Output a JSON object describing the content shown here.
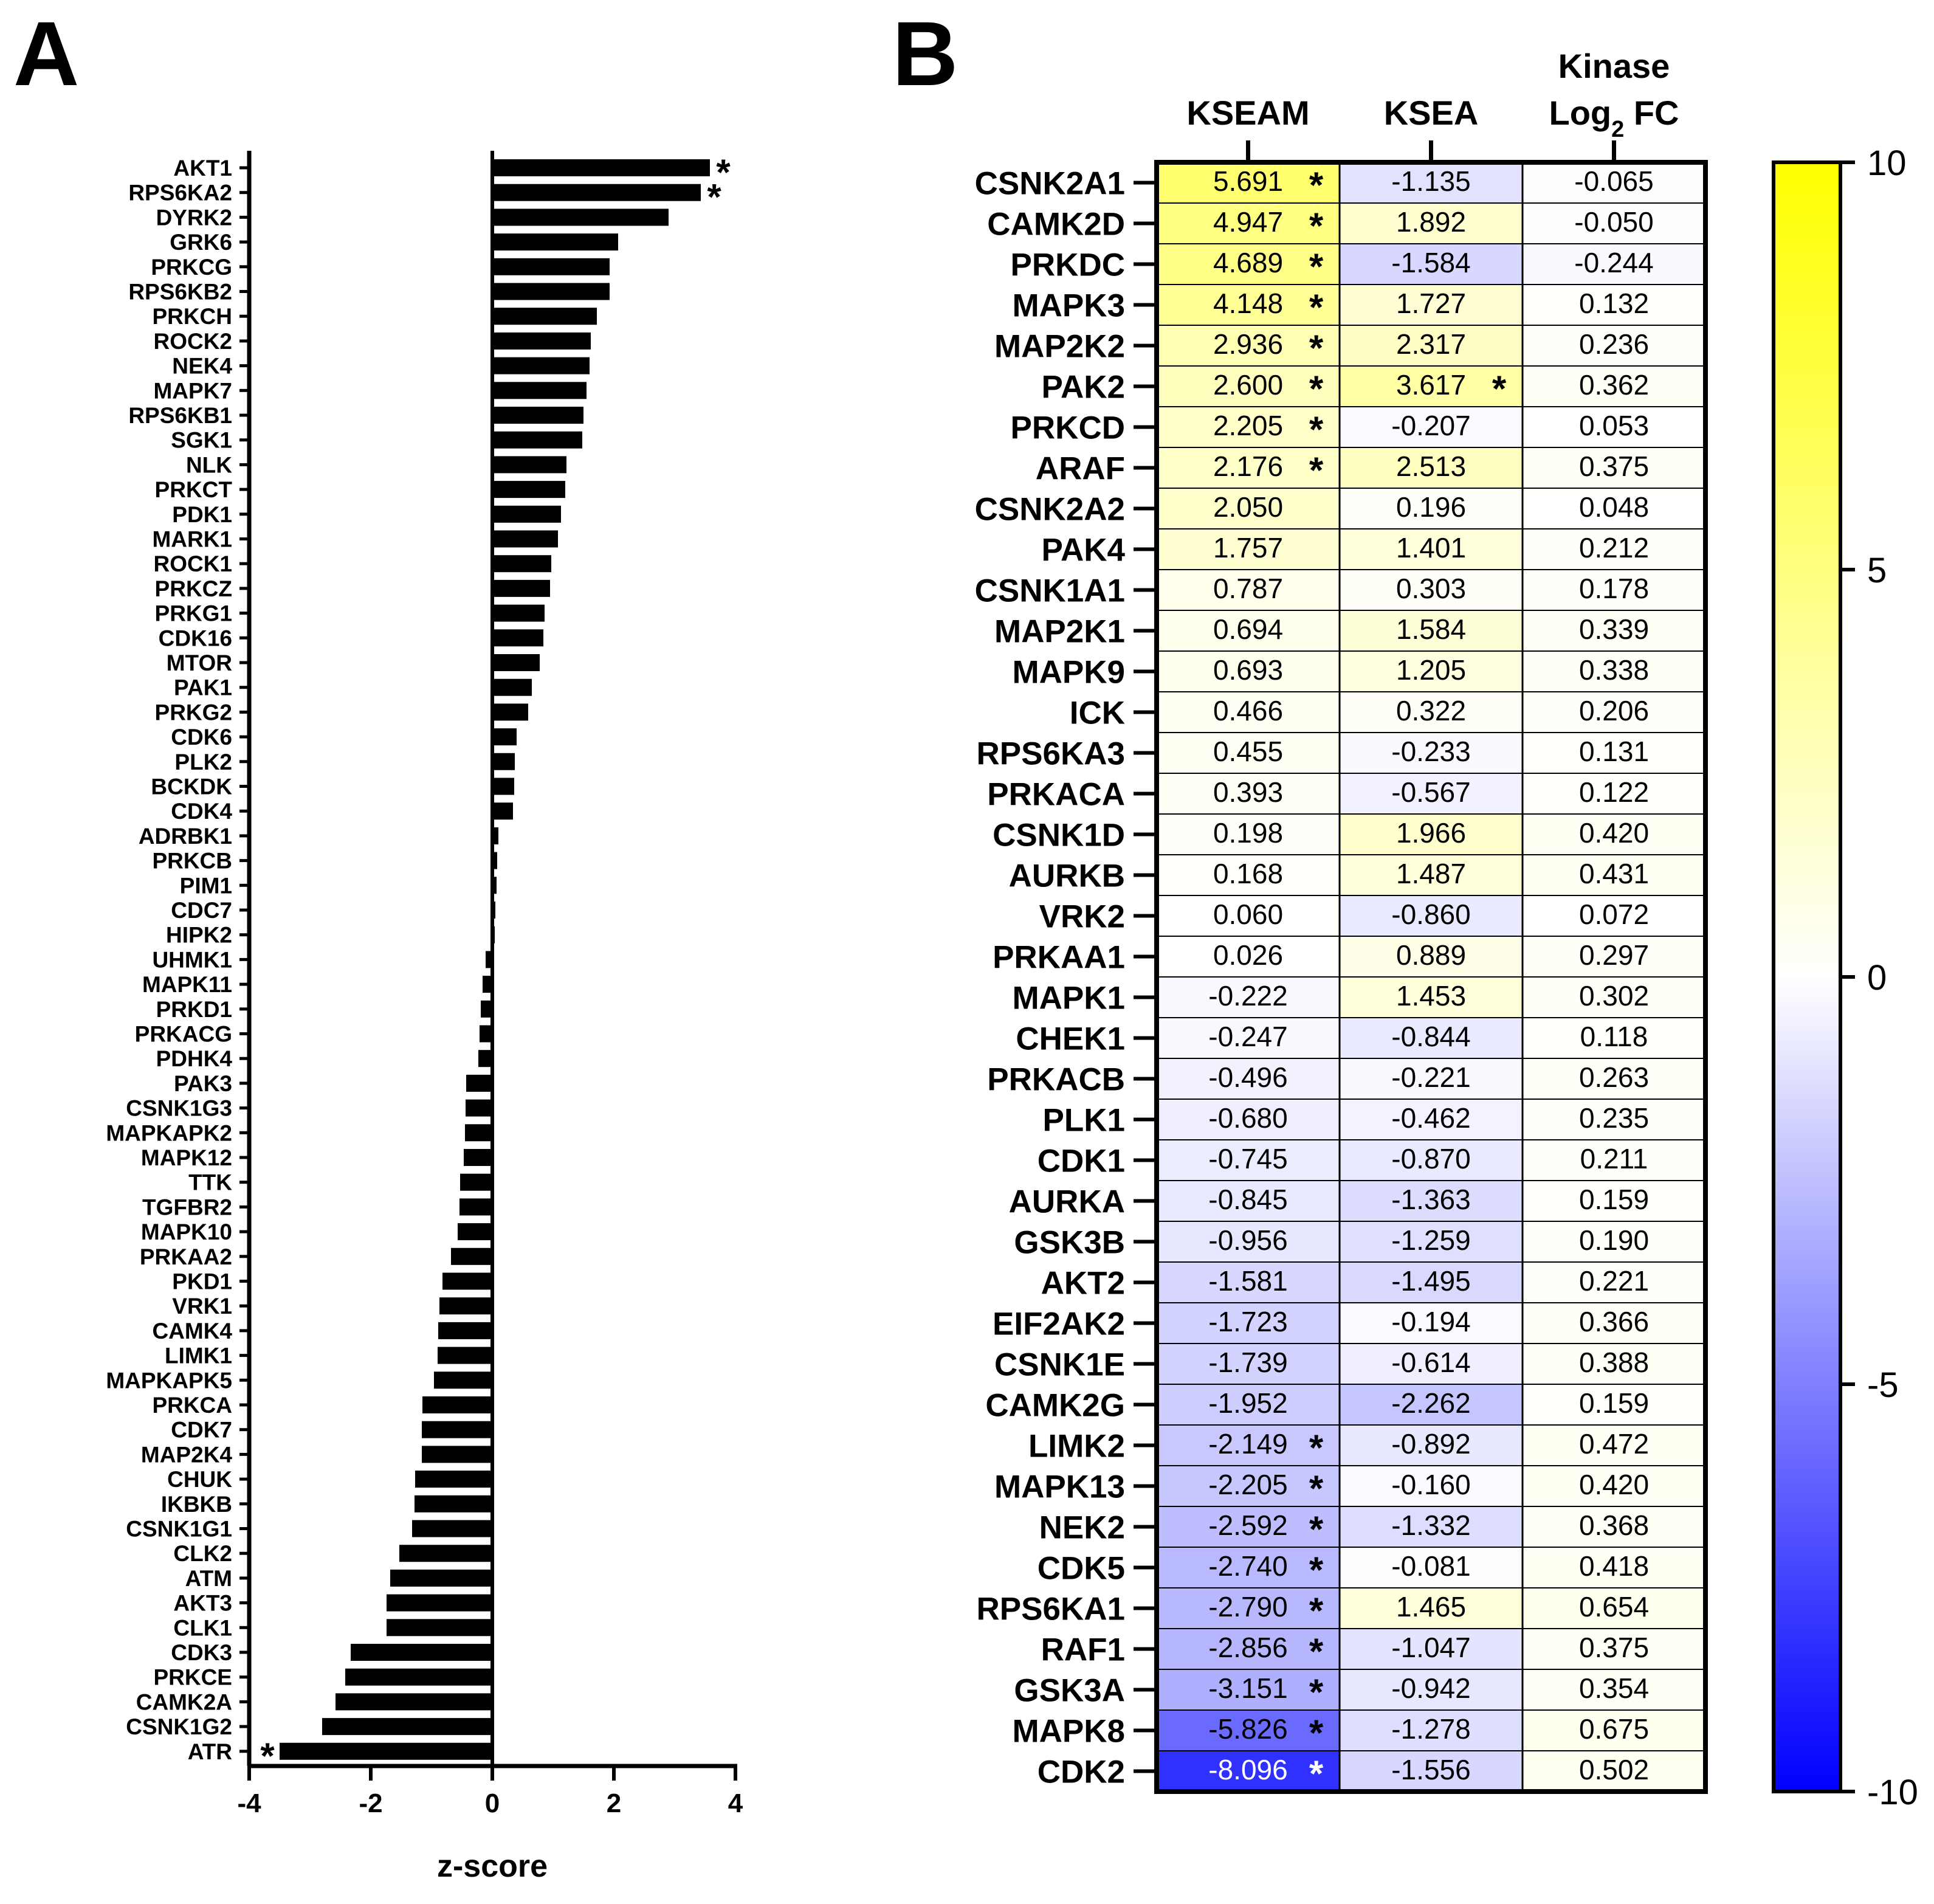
{
  "panels": {
    "a": "A",
    "b": "B"
  },
  "chart_data": [
    {
      "type": "bar",
      "orientation": "horizontal",
      "panel": "A",
      "title": "",
      "xlabel": "z-score",
      "ylabel": "",
      "xlim": [
        -4,
        4
      ],
      "xticks": [
        "-4",
        "-2",
        "0",
        "2",
        "4"
      ],
      "star_marker": "*",
      "categories": [
        "AKT1",
        "RPS6KA2",
        "DYRK2",
        "GRK6",
        "PRKCG",
        "RPS6KB2",
        "PRKCH",
        "ROCK2",
        "NEK4",
        "MAPK7",
        "RPS6KB1",
        "SGK1",
        "NLK",
        "PRKCT",
        "PDK1",
        "MARK1",
        "ROCK1",
        "PRKCZ",
        "PRKG1",
        "CDK16",
        "MTOR",
        "PAK1",
        "PRKG2",
        "CDK6",
        "PLK2",
        "BCKDK",
        "CDK4",
        "ADRBK1",
        "PRKCB",
        "PIM1",
        "CDC7",
        "HIPK2",
        "UHMK1",
        "MAPK11",
        "PRKD1",
        "PRKACG",
        "PDHK4",
        "PAK3",
        "CSNK1G3",
        "MAPKAPK2",
        "MAPK12",
        "TTK",
        "TGFBR2",
        "MAPK10",
        "PRKAA2",
        "PKD1",
        "VRK1",
        "CAMK4",
        "LIMK1",
        "MAPKAPK5",
        "PRKCA",
        "CDK7",
        "MAP2K4",
        "CHUK",
        "IKBKB",
        "CSNK1G1",
        "CLK2",
        "ATM",
        "AKT3",
        "CLK1",
        "CDK3",
        "PRKCE",
        "CAMK2A",
        "CSNK1G2",
        "ATR"
      ],
      "values": [
        3.58,
        3.43,
        2.9,
        2.07,
        1.93,
        1.93,
        1.72,
        1.62,
        1.6,
        1.55,
        1.5,
        1.48,
        1.22,
        1.2,
        1.13,
        1.08,
        0.97,
        0.95,
        0.86,
        0.84,
        0.78,
        0.65,
        0.59,
        0.4,
        0.37,
        0.36,
        0.34,
        0.1,
        0.08,
        0.07,
        0.05,
        0.04,
        -0.11,
        -0.16,
        -0.19,
        -0.21,
        -0.23,
        -0.43,
        -0.44,
        -0.45,
        -0.47,
        -0.53,
        -0.54,
        -0.57,
        -0.68,
        -0.82,
        -0.87,
        -0.89,
        -0.9,
        -0.96,
        -1.15,
        -1.16,
        -1.16,
        -1.27,
        -1.28,
        -1.32,
        -1.53,
        -1.68,
        -1.74,
        -1.74,
        -2.33,
        -2.42,
        -2.58,
        -2.8,
        -3.5
      ],
      "significant": [
        "AKT1",
        "RPS6KA2",
        "ATR"
      ]
    },
    {
      "type": "heatmap",
      "panel": "B",
      "title": "",
      "columns": [
        "KSEAM",
        "KSEA",
        "Kinase Log2 FC"
      ],
      "column_headers": {
        "kseam": "KSEAM",
        "ksea": "KSEA",
        "fc_line1": "Kinase",
        "fc_log": "Log",
        "fc_sub": "2",
        "fc_rest": " FC"
      },
      "colorbar": {
        "min": -10,
        "max": 10,
        "ticks": [
          "10",
          "5",
          "0",
          "-5",
          "-10"
        ],
        "colors": {
          "low": "#0000ff",
          "mid": "#ffffff",
          "high": "#ffff00"
        }
      },
      "star_marker": "*",
      "rows": [
        {
          "kinase": "CSNK2A1",
          "kseam": "5.691",
          "kseam_sig": true,
          "ksea": "-1.135",
          "ksea_sig": false,
          "fc": "-0.065"
        },
        {
          "kinase": "CAMK2D",
          "kseam": "4.947",
          "kseam_sig": true,
          "ksea": "1.892",
          "ksea_sig": false,
          "fc": "-0.050"
        },
        {
          "kinase": "PRKDC",
          "kseam": "4.689",
          "kseam_sig": true,
          "ksea": "-1.584",
          "ksea_sig": false,
          "fc": "-0.244"
        },
        {
          "kinase": "MAPK3",
          "kseam": "4.148",
          "kseam_sig": true,
          "ksea": "1.727",
          "ksea_sig": false,
          "fc": "0.132"
        },
        {
          "kinase": "MAP2K2",
          "kseam": "2.936",
          "kseam_sig": true,
          "ksea": "2.317",
          "ksea_sig": false,
          "fc": "0.236"
        },
        {
          "kinase": "PAK2",
          "kseam": "2.600",
          "kseam_sig": true,
          "ksea": "3.617",
          "ksea_sig": true,
          "fc": "0.362"
        },
        {
          "kinase": "PRKCD",
          "kseam": "2.205",
          "kseam_sig": true,
          "ksea": "-0.207",
          "ksea_sig": false,
          "fc": "0.053"
        },
        {
          "kinase": "ARAF",
          "kseam": "2.176",
          "kseam_sig": true,
          "ksea": "2.513",
          "ksea_sig": false,
          "fc": "0.375"
        },
        {
          "kinase": "CSNK2A2",
          "kseam": "2.050",
          "kseam_sig": false,
          "ksea": "0.196",
          "ksea_sig": false,
          "fc": "0.048"
        },
        {
          "kinase": "PAK4",
          "kseam": "1.757",
          "kseam_sig": false,
          "ksea": "1.401",
          "ksea_sig": false,
          "fc": "0.212"
        },
        {
          "kinase": "CSNK1A1",
          "kseam": "0.787",
          "kseam_sig": false,
          "ksea": "0.303",
          "ksea_sig": false,
          "fc": "0.178"
        },
        {
          "kinase": "MAP2K1",
          "kseam": "0.694",
          "kseam_sig": false,
          "ksea": "1.584",
          "ksea_sig": false,
          "fc": "0.339"
        },
        {
          "kinase": "MAPK9",
          "kseam": "0.693",
          "kseam_sig": false,
          "ksea": "1.205",
          "ksea_sig": false,
          "fc": "0.338"
        },
        {
          "kinase": "ICK",
          "kseam": "0.466",
          "kseam_sig": false,
          "ksea": "0.322",
          "ksea_sig": false,
          "fc": "0.206"
        },
        {
          "kinase": "RPS6KA3",
          "kseam": "0.455",
          "kseam_sig": false,
          "ksea": "-0.233",
          "ksea_sig": false,
          "fc": "0.131"
        },
        {
          "kinase": "PRKACA",
          "kseam": "0.393",
          "kseam_sig": false,
          "ksea": "-0.567",
          "ksea_sig": false,
          "fc": "0.122"
        },
        {
          "kinase": "CSNK1D",
          "kseam": "0.198",
          "kseam_sig": false,
          "ksea": "1.966",
          "ksea_sig": false,
          "fc": "0.420"
        },
        {
          "kinase": "AURKB",
          "kseam": "0.168",
          "kseam_sig": false,
          "ksea": "1.487",
          "ksea_sig": false,
          "fc": "0.431"
        },
        {
          "kinase": "VRK2",
          "kseam": "0.060",
          "kseam_sig": false,
          "ksea": "-0.860",
          "ksea_sig": false,
          "fc": "0.072"
        },
        {
          "kinase": "PRKAA1",
          "kseam": "0.026",
          "kseam_sig": false,
          "ksea": "0.889",
          "ksea_sig": false,
          "fc": "0.297"
        },
        {
          "kinase": "MAPK1",
          "kseam": "-0.222",
          "kseam_sig": false,
          "ksea": "1.453",
          "ksea_sig": false,
          "fc": "0.302"
        },
        {
          "kinase": "CHEK1",
          "kseam": "-0.247",
          "kseam_sig": false,
          "ksea": "-0.844",
          "ksea_sig": false,
          "fc": "0.118"
        },
        {
          "kinase": "PRKACB",
          "kseam": "-0.496",
          "kseam_sig": false,
          "ksea": "-0.221",
          "ksea_sig": false,
          "fc": "0.263"
        },
        {
          "kinase": "PLK1",
          "kseam": "-0.680",
          "kseam_sig": false,
          "ksea": "-0.462",
          "ksea_sig": false,
          "fc": "0.235"
        },
        {
          "kinase": "CDK1",
          "kseam": "-0.745",
          "kseam_sig": false,
          "ksea": "-0.870",
          "ksea_sig": false,
          "fc": "0.211"
        },
        {
          "kinase": "AURKA",
          "kseam": "-0.845",
          "kseam_sig": false,
          "ksea": "-1.363",
          "ksea_sig": false,
          "fc": "0.159"
        },
        {
          "kinase": "GSK3B",
          "kseam": "-0.956",
          "kseam_sig": false,
          "ksea": "-1.259",
          "ksea_sig": false,
          "fc": "0.190"
        },
        {
          "kinase": "AKT2",
          "kseam": "-1.581",
          "kseam_sig": false,
          "ksea": "-1.495",
          "ksea_sig": false,
          "fc": "0.221"
        },
        {
          "kinase": "EIF2AK2",
          "kseam": "-1.723",
          "kseam_sig": false,
          "ksea": "-0.194",
          "ksea_sig": false,
          "fc": "0.366"
        },
        {
          "kinase": "CSNK1E",
          "kseam": "-1.739",
          "kseam_sig": false,
          "ksea": "-0.614",
          "ksea_sig": false,
          "fc": "0.388"
        },
        {
          "kinase": "CAMK2G",
          "kseam": "-1.952",
          "kseam_sig": false,
          "ksea": "-2.262",
          "ksea_sig": false,
          "fc": "0.159"
        },
        {
          "kinase": "LIMK2",
          "kseam": "-2.149",
          "kseam_sig": true,
          "ksea": "-0.892",
          "ksea_sig": false,
          "fc": "0.472"
        },
        {
          "kinase": "MAPK13",
          "kseam": "-2.205",
          "kseam_sig": true,
          "ksea": "-0.160",
          "ksea_sig": false,
          "fc": "0.420"
        },
        {
          "kinase": "NEK2",
          "kseam": "-2.592",
          "kseam_sig": true,
          "ksea": "-1.332",
          "ksea_sig": false,
          "fc": "0.368"
        },
        {
          "kinase": "CDK5",
          "kseam": "-2.740",
          "kseam_sig": true,
          "ksea": "-0.081",
          "ksea_sig": false,
          "fc": "0.418"
        },
        {
          "kinase": "RPS6KA1",
          "kseam": "-2.790",
          "kseam_sig": true,
          "ksea": "1.465",
          "ksea_sig": false,
          "fc": "0.654"
        },
        {
          "kinase": "RAF1",
          "kseam": "-2.856",
          "kseam_sig": true,
          "ksea": "-1.047",
          "ksea_sig": false,
          "fc": "0.375"
        },
        {
          "kinase": "GSK3A",
          "kseam": "-3.151",
          "kseam_sig": true,
          "ksea": "-0.942",
          "ksea_sig": false,
          "fc": "0.354"
        },
        {
          "kinase": "MAPK8",
          "kseam": "-5.826",
          "kseam_sig": true,
          "ksea": "-1.278",
          "ksea_sig": false,
          "fc": "0.675"
        },
        {
          "kinase": "CDK2",
          "kseam": "-8.096",
          "kseam_sig": true,
          "ksea": "-1.556",
          "ksea_sig": false,
          "fc": "0.502"
        }
      ]
    }
  ]
}
